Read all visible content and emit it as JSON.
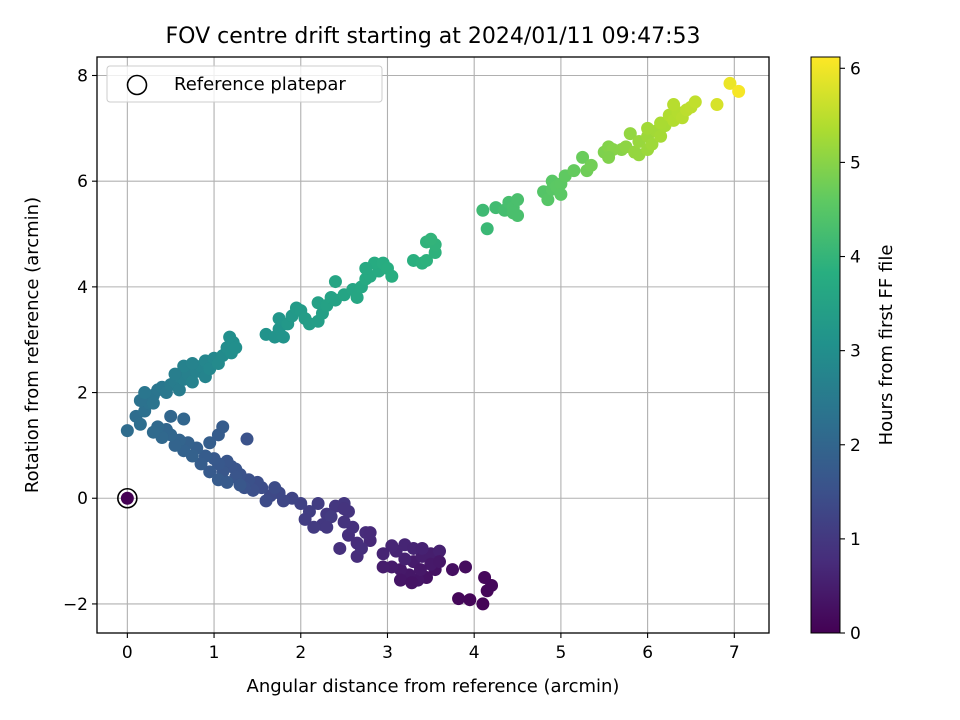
{
  "chart_data": {
    "type": "scatter",
    "title": "FOV centre drift starting at 2024/01/11 09:47:53",
    "xlabel": "Angular distance from reference (arcmin)",
    "ylabel": "Rotation from reference (arcmin)",
    "xlim": [
      -0.35,
      7.4
    ],
    "ylim": [
      -2.55,
      8.35
    ],
    "xticks": [
      0,
      1,
      2,
      3,
      4,
      5,
      6,
      7
    ],
    "yticks": [
      -2,
      0,
      2,
      4,
      6,
      8
    ],
    "xtick_labels": [
      "0",
      "1",
      "2",
      "3",
      "4",
      "5",
      "6",
      "7"
    ],
    "ytick_labels": [
      "−2",
      "0",
      "2",
      "4",
      "6",
      "8"
    ],
    "grid": true,
    "legend": {
      "placement": "top-left",
      "entries": [
        {
          "label": "Reference platepar",
          "marker": "open-circle"
        }
      ]
    },
    "colorbar": {
      "label": "Hours from first FF file",
      "range": [
        0,
        6.12
      ],
      "ticks": [
        0,
        1,
        2,
        3,
        4,
        5,
        6
      ],
      "tick_labels": [
        "0",
        "1",
        "2",
        "3",
        "4",
        "5",
        "6"
      ],
      "colormap": "viridis"
    },
    "reference_point": {
      "x": 0,
      "y": 0
    },
    "points": [
      [
        4.1,
        -2.0,
        0.05
      ],
      [
        3.95,
        -1.92,
        0.08
      ],
      [
        3.82,
        -1.9,
        0.1
      ],
      [
        4.15,
        -1.75,
        0.1
      ],
      [
        4.2,
        -1.65,
        0.12
      ],
      [
        4.12,
        -1.5,
        0.13
      ],
      [
        3.9,
        -1.3,
        0.2
      ],
      [
        3.75,
        -1.35,
        0.25
      ],
      [
        3.55,
        -1.35,
        0.3
      ],
      [
        3.45,
        -1.5,
        0.3
      ],
      [
        3.35,
        -1.55,
        0.35
      ],
      [
        3.25,
        -1.45,
        0.38
      ],
      [
        3.15,
        -1.35,
        0.42
      ],
      [
        3.05,
        -1.3,
        0.45
      ],
      [
        2.95,
        -1.3,
        0.48
      ],
      [
        3.3,
        -1.2,
        0.45
      ],
      [
        3.4,
        -1.1,
        0.5
      ],
      [
        3.5,
        -1.05,
        0.5
      ],
      [
        3.6,
        -1.0,
        0.55
      ],
      [
        3.5,
        -1.25,
        0.42
      ],
      [
        3.2,
        -1.15,
        0.55
      ],
      [
        3.1,
        -1.0,
        0.6
      ],
      [
        3.05,
        -0.9,
        0.65
      ],
      [
        3.2,
        -0.88,
        0.62
      ],
      [
        3.3,
        -0.95,
        0.6
      ],
      [
        3.4,
        -0.95,
        0.58
      ],
      [
        3.15,
        -1.55,
        0.35
      ],
      [
        3.28,
        -1.6,
        0.32
      ],
      [
        3.6,
        -1.2,
        0.4
      ],
      [
        3.38,
        -1.35,
        0.4
      ],
      [
        2.8,
        -0.8,
        0.7
      ],
      [
        2.75,
        -0.65,
        0.75
      ],
      [
        2.65,
        -0.85,
        0.78
      ],
      [
        2.55,
        -0.7,
        0.8
      ],
      [
        2.6,
        -0.55,
        0.85
      ],
      [
        2.5,
        -0.45,
        0.88
      ],
      [
        2.45,
        -0.95,
        0.82
      ],
      [
        2.65,
        -1.1,
        0.76
      ],
      [
        2.55,
        -0.25,
        0.92
      ],
      [
        2.5,
        -0.1,
        0.95
      ],
      [
        2.4,
        -0.15,
        0.95
      ],
      [
        2.3,
        -0.3,
        1.0
      ],
      [
        2.25,
        -0.5,
        1.0
      ],
      [
        2.35,
        -0.35,
        1.05
      ],
      [
        2.2,
        -0.1,
        1.1
      ],
      [
        2.1,
        -0.25,
        1.12
      ],
      [
        2.05,
        -0.4,
        1.1
      ],
      [
        2.15,
        -0.55,
        1.05
      ],
      [
        2.0,
        -0.1,
        1.2
      ],
      [
        1.9,
        0.0,
        1.25
      ],
      [
        1.8,
        -0.05,
        1.3
      ],
      [
        1.75,
        0.1,
        1.32
      ],
      [
        1.65,
        0.05,
        1.35
      ],
      [
        1.6,
        -0.05,
        1.38
      ],
      [
        1.55,
        0.2,
        1.42
      ],
      [
        1.5,
        0.3,
        1.45
      ],
      [
        1.45,
        0.15,
        1.48
      ],
      [
        1.4,
        0.35,
        1.5
      ],
      [
        1.35,
        0.2,
        1.52
      ],
      [
        1.3,
        0.45,
        1.55
      ],
      [
        1.25,
        0.55,
        1.58
      ],
      [
        1.2,
        0.6,
        1.6
      ],
      [
        1.15,
        0.7,
        1.62
      ],
      [
        1.25,
        0.4,
        1.6
      ],
      [
        1.1,
        0.5,
        1.65
      ],
      [
        1.05,
        0.65,
        1.68
      ],
      [
        1.0,
        0.75,
        1.7
      ],
      [
        0.95,
        0.5,
        1.72
      ],
      [
        1.05,
        0.35,
        1.75
      ],
      [
        1.15,
        0.3,
        1.72
      ],
      [
        1.3,
        0.25,
        1.65
      ],
      [
        0.9,
        0.8,
        1.78
      ],
      [
        0.85,
        0.65,
        1.8
      ],
      [
        0.8,
        0.95,
        1.85
      ],
      [
        0.75,
        0.8,
        1.88
      ],
      [
        0.7,
        1.05,
        1.9
      ],
      [
        0.65,
        0.9,
        1.92
      ],
      [
        0.6,
        1.1,
        1.95
      ],
      [
        0.55,
        1.0,
        1.95
      ],
      [
        0.5,
        1.2,
        2.0
      ],
      [
        0.45,
        1.3,
        2.02
      ],
      [
        0.4,
        1.15,
        2.05
      ],
      [
        0.35,
        1.35,
        2.08
      ],
      [
        0.3,
        1.25,
        2.1
      ],
      [
        0.95,
        1.05,
        1.82
      ],
      [
        1.05,
        1.2,
        1.78
      ],
      [
        1.1,
        1.35,
        1.76
      ],
      [
        1.38,
        1.12,
        1.55
      ],
      [
        0.65,
        1.5,
        2.0
      ],
      [
        0.5,
        1.55,
        2.02
      ],
      [
        2.5,
        -0.2,
        0.9
      ],
      [
        2.3,
        -0.55,
        1.0
      ],
      [
        2.8,
        -0.65,
        0.72
      ],
      [
        2.7,
        -0.95,
        0.8
      ],
      [
        2.95,
        -1.05,
        0.6
      ],
      [
        1.7,
        0.2,
        1.4
      ],
      [
        0.0,
        1.28,
        2.15
      ],
      [
        0.1,
        1.55,
        2.18
      ],
      [
        0.15,
        1.4,
        2.2
      ],
      [
        0.2,
        1.65,
        2.25
      ],
      [
        0.25,
        1.8,
        2.3
      ],
      [
        0.15,
        1.85,
        2.3
      ],
      [
        0.3,
        1.95,
        2.35
      ],
      [
        0.35,
        2.05,
        2.38
      ],
      [
        0.3,
        1.8,
        2.35
      ],
      [
        0.4,
        2.1,
        2.42
      ],
      [
        0.45,
        2.0,
        2.45
      ],
      [
        0.5,
        2.15,
        2.5
      ],
      [
        0.55,
        2.2,
        2.55
      ],
      [
        0.6,
        2.3,
        2.6
      ],
      [
        0.6,
        2.05,
        2.55
      ],
      [
        0.65,
        2.25,
        2.62
      ],
      [
        0.7,
        2.35,
        2.65
      ],
      [
        0.75,
        2.2,
        2.68
      ],
      [
        0.8,
        2.4,
        2.7
      ],
      [
        0.85,
        2.5,
        2.75
      ],
      [
        0.9,
        2.3,
        2.75
      ],
      [
        0.9,
        2.6,
        2.8
      ],
      [
        0.95,
        2.45,
        2.82
      ],
      [
        1.0,
        2.65,
        2.85
      ],
      [
        1.05,
        2.55,
        2.88
      ],
      [
        1.1,
        2.7,
        2.9
      ],
      [
        0.65,
        2.5,
        2.7
      ],
      [
        0.75,
        2.55,
        2.72
      ],
      [
        0.55,
        2.35,
        2.6
      ],
      [
        1.15,
        2.85,
        2.95
      ],
      [
        1.2,
        2.75,
        2.98
      ],
      [
        1.22,
        2.95,
        3.0
      ],
      [
        1.18,
        3.05,
        3.02
      ],
      [
        1.25,
        2.85,
        3.0
      ],
      [
        0.2,
        2.0,
        2.4
      ],
      [
        1.6,
        3.1,
        3.1
      ],
      [
        1.7,
        3.05,
        3.12
      ],
      [
        1.75,
        3.2,
        3.15
      ],
      [
        1.8,
        3.05,
        3.15
      ],
      [
        1.75,
        3.4,
        3.2
      ],
      [
        1.85,
        3.3,
        3.25
      ],
      [
        1.9,
        3.45,
        3.28
      ],
      [
        1.95,
        3.6,
        3.3
      ],
      [
        2.0,
        3.55,
        3.32
      ],
      [
        2.05,
        3.4,
        3.35
      ],
      [
        2.1,
        3.3,
        3.38
      ],
      [
        2.2,
        3.35,
        3.4
      ],
      [
        2.25,
        3.5,
        3.42
      ],
      [
        2.2,
        3.7,
        3.45
      ],
      [
        2.3,
        3.65,
        3.48
      ],
      [
        2.35,
        3.8,
        3.5
      ],
      [
        2.4,
        3.75,
        3.52
      ],
      [
        2.5,
        3.85,
        3.55
      ],
      [
        2.4,
        4.1,
        3.58
      ],
      [
        2.6,
        3.95,
        3.6
      ],
      [
        2.65,
        3.8,
        3.62
      ],
      [
        2.7,
        4.0,
        3.65
      ],
      [
        2.75,
        4.15,
        3.68
      ],
      [
        2.8,
        4.2,
        3.7
      ],
      [
        2.9,
        4.3,
        3.72
      ],
      [
        2.85,
        4.45,
        3.75
      ],
      [
        2.95,
        4.45,
        3.78
      ],
      [
        3.0,
        4.35,
        3.8
      ],
      [
        3.05,
        4.2,
        3.8
      ],
      [
        2.75,
        4.35,
        3.7
      ],
      [
        3.3,
        4.5,
        3.85
      ],
      [
        3.4,
        4.45,
        3.88
      ],
      [
        3.45,
        4.5,
        3.9
      ],
      [
        3.55,
        4.65,
        3.92
      ],
      [
        3.45,
        4.85,
        3.95
      ],
      [
        3.55,
        4.8,
        3.95
      ],
      [
        3.5,
        4.9,
        3.98
      ],
      [
        4.1,
        5.45,
        4.15
      ],
      [
        4.15,
        5.1,
        4.1
      ],
      [
        4.25,
        5.5,
        4.2
      ],
      [
        4.35,
        5.45,
        4.25
      ],
      [
        4.4,
        5.6,
        4.28
      ],
      [
        4.45,
        5.5,
        4.3
      ],
      [
        4.5,
        5.65,
        4.32
      ],
      [
        4.45,
        5.4,
        4.3
      ],
      [
        4.5,
        5.35,
        4.3
      ],
      [
        4.8,
        5.8,
        4.45
      ],
      [
        4.85,
        5.65,
        4.48
      ],
      [
        4.9,
        5.85,
        4.5
      ],
      [
        4.9,
        6.0,
        4.52
      ],
      [
        4.95,
        5.9,
        4.55
      ],
      [
        5.0,
        5.95,
        4.56
      ],
      [
        5.0,
        5.75,
        4.55
      ],
      [
        5.05,
        6.1,
        4.6
      ],
      [
        5.15,
        6.2,
        4.65
      ],
      [
        5.25,
        6.45,
        4.7
      ],
      [
        5.3,
        6.2,
        4.75
      ],
      [
        5.35,
        6.3,
        4.78
      ],
      [
        5.5,
        6.55,
        4.9
      ],
      [
        5.55,
        6.65,
        4.95
      ],
      [
        5.6,
        6.6,
        4.98
      ],
      [
        5.55,
        6.45,
        4.92
      ],
      [
        5.7,
        6.6,
        5.0
      ],
      [
        5.75,
        6.65,
        5.05
      ],
      [
        5.8,
        6.9,
        5.1
      ],
      [
        5.85,
        6.55,
        5.12
      ],
      [
        5.9,
        6.75,
        5.15
      ],
      [
        5.9,
        6.5,
        5.12
      ],
      [
        6.0,
        6.6,
        5.18
      ],
      [
        6.0,
        6.85,
        5.2
      ],
      [
        6.05,
        6.7,
        5.22
      ],
      [
        6.1,
        6.95,
        5.25
      ],
      [
        6.15,
        6.85,
        5.28
      ],
      [
        6.2,
        7.05,
        5.3
      ],
      [
        6.0,
        7.0,
        5.25
      ],
      [
        6.15,
        7.1,
        5.32
      ],
      [
        6.25,
        7.25,
        5.38
      ],
      [
        6.3,
        7.15,
        5.4
      ],
      [
        6.35,
        7.3,
        5.42
      ],
      [
        6.3,
        7.45,
        5.45
      ],
      [
        6.4,
        7.2,
        5.45
      ],
      [
        6.45,
        7.35,
        5.5
      ],
      [
        6.5,
        7.4,
        5.52
      ],
      [
        6.55,
        7.5,
        5.55
      ],
      [
        6.8,
        7.45,
        5.75
      ],
      [
        6.95,
        7.85,
        5.95
      ],
      [
        7.05,
        7.7,
        6.05
      ]
    ]
  }
}
